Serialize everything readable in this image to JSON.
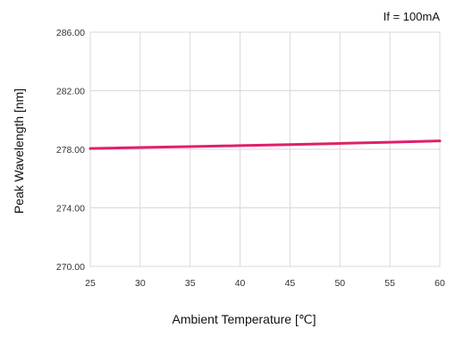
{
  "chart_data": {
    "type": "line",
    "annotation": "If = 100mA",
    "xlabel": "Ambient Temperature [℃]",
    "ylabel": "Peak Wavelength [nm]",
    "xlim": [
      25,
      60
    ],
    "ylim": [
      270,
      286
    ],
    "x_ticks": [
      25,
      30,
      35,
      40,
      45,
      50,
      55,
      60
    ],
    "y_ticks": [
      "286.00",
      "282.00",
      "278.00",
      "274.00",
      "270.00"
    ],
    "y_tick_values": [
      286,
      282,
      278,
      274,
      270
    ],
    "grid": true,
    "legend": "none",
    "series": [
      {
        "color": "#e0206a",
        "x": [
          25,
          30,
          35,
          40,
          45,
          50,
          55,
          60
        ],
        "y": [
          278.05,
          278.12,
          278.18,
          278.25,
          278.32,
          278.4,
          278.48,
          278.57
        ]
      }
    ]
  }
}
